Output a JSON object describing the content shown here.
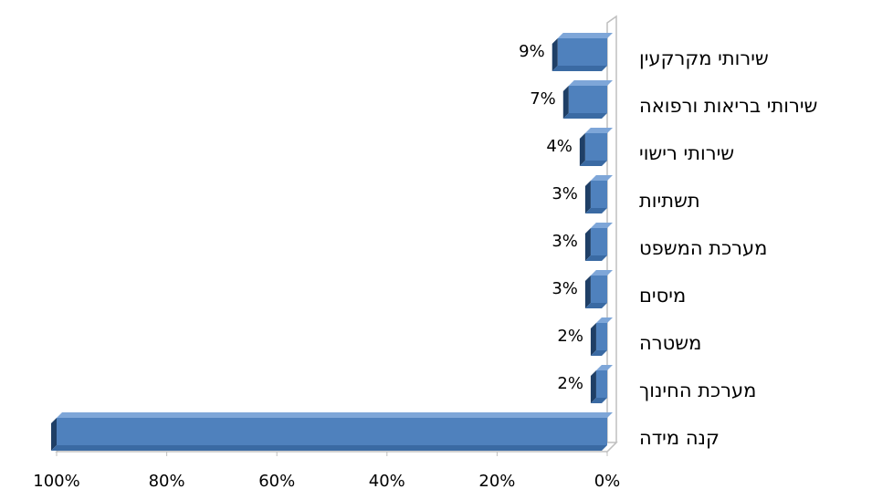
{
  "chart_data": {
    "type": "bar",
    "orientation": "horizontal",
    "categories": [
      "שירותי מקרקעין",
      "שירותי בריאות ורפואה",
      "שירותי רישוי",
      "תשתיות",
      "מערכת המשפט",
      "מיסים",
      "משטרה",
      "מערכת החינוך",
      "קנה מידה"
    ],
    "values": [
      9,
      7,
      4,
      3,
      3,
      3,
      2,
      2,
      100
    ],
    "value_labels": [
      "9%",
      "7%",
      "4%",
      "3%",
      "3%",
      "3%",
      "2%",
      "2%",
      null
    ],
    "color": "#4f81bd",
    "xlim": [
      0,
      100
    ],
    "xticks": [
      {
        "value": 100,
        "label": "100%"
      },
      {
        "value": 80,
        "label": "80%"
      },
      {
        "value": 60,
        "label": "60%"
      },
      {
        "value": 40,
        "label": "40%"
      },
      {
        "value": 20,
        "label": "20%"
      },
      {
        "value": 0,
        "label": "0%"
      }
    ],
    "x_reversed": true,
    "grid": false
  }
}
